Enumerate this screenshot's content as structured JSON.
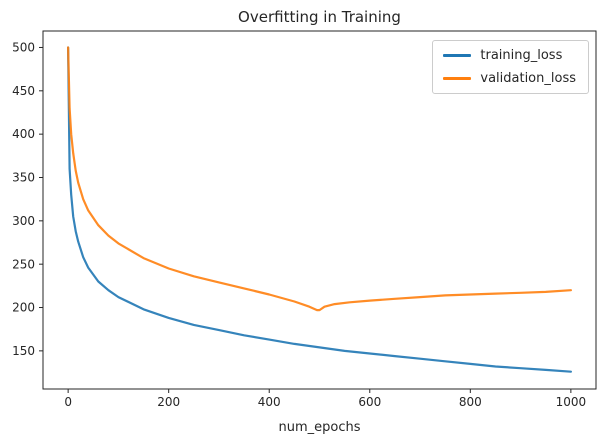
{
  "chart_data": {
    "type": "line",
    "title": "Overfitting in Training",
    "xlabel": "num_epochs",
    "ylabel": "",
    "xlim": [
      -50,
      1050
    ],
    "ylim": [
      106,
      519
    ],
    "xticks": [
      0,
      200,
      400,
      600,
      800,
      1000
    ],
    "yticks": [
      150,
      200,
      250,
      300,
      350,
      400,
      450,
      500
    ],
    "grid": false,
    "legend_position": "upper right",
    "series": [
      {
        "name": "training_loss",
        "color": "#1f77b4",
        "x": [
          0,
          3,
          6,
          10,
          15,
          20,
          30,
          40,
          60,
          80,
          100,
          150,
          200,
          250,
          300,
          350,
          400,
          450,
          500,
          550,
          600,
          650,
          700,
          750,
          800,
          850,
          900,
          950,
          1000
        ],
        "y": [
          500,
          360,
          330,
          305,
          288,
          276,
          258,
          246,
          230,
          220,
          212,
          198,
          188,
          180,
          174,
          168,
          163,
          158,
          154,
          150,
          147,
          144,
          141,
          138,
          135,
          132,
          130,
          128,
          126
        ]
      },
      {
        "name": "validation_loss",
        "color": "#ff7f0e",
        "x": [
          0,
          3,
          6,
          10,
          15,
          20,
          30,
          40,
          60,
          80,
          100,
          150,
          200,
          250,
          300,
          350,
          400,
          450,
          480,
          495,
          500,
          510,
          530,
          560,
          600,
          650,
          700,
          750,
          800,
          850,
          900,
          950,
          1000
        ],
        "y": [
          500,
          430,
          400,
          378,
          358,
          344,
          325,
          312,
          295,
          283,
          274,
          257,
          245,
          236,
          229,
          222,
          215,
          207,
          201,
          197,
          197,
          201,
          204,
          206,
          208,
          210,
          212,
          214,
          215,
          216,
          217,
          218,
          220
        ]
      }
    ]
  }
}
